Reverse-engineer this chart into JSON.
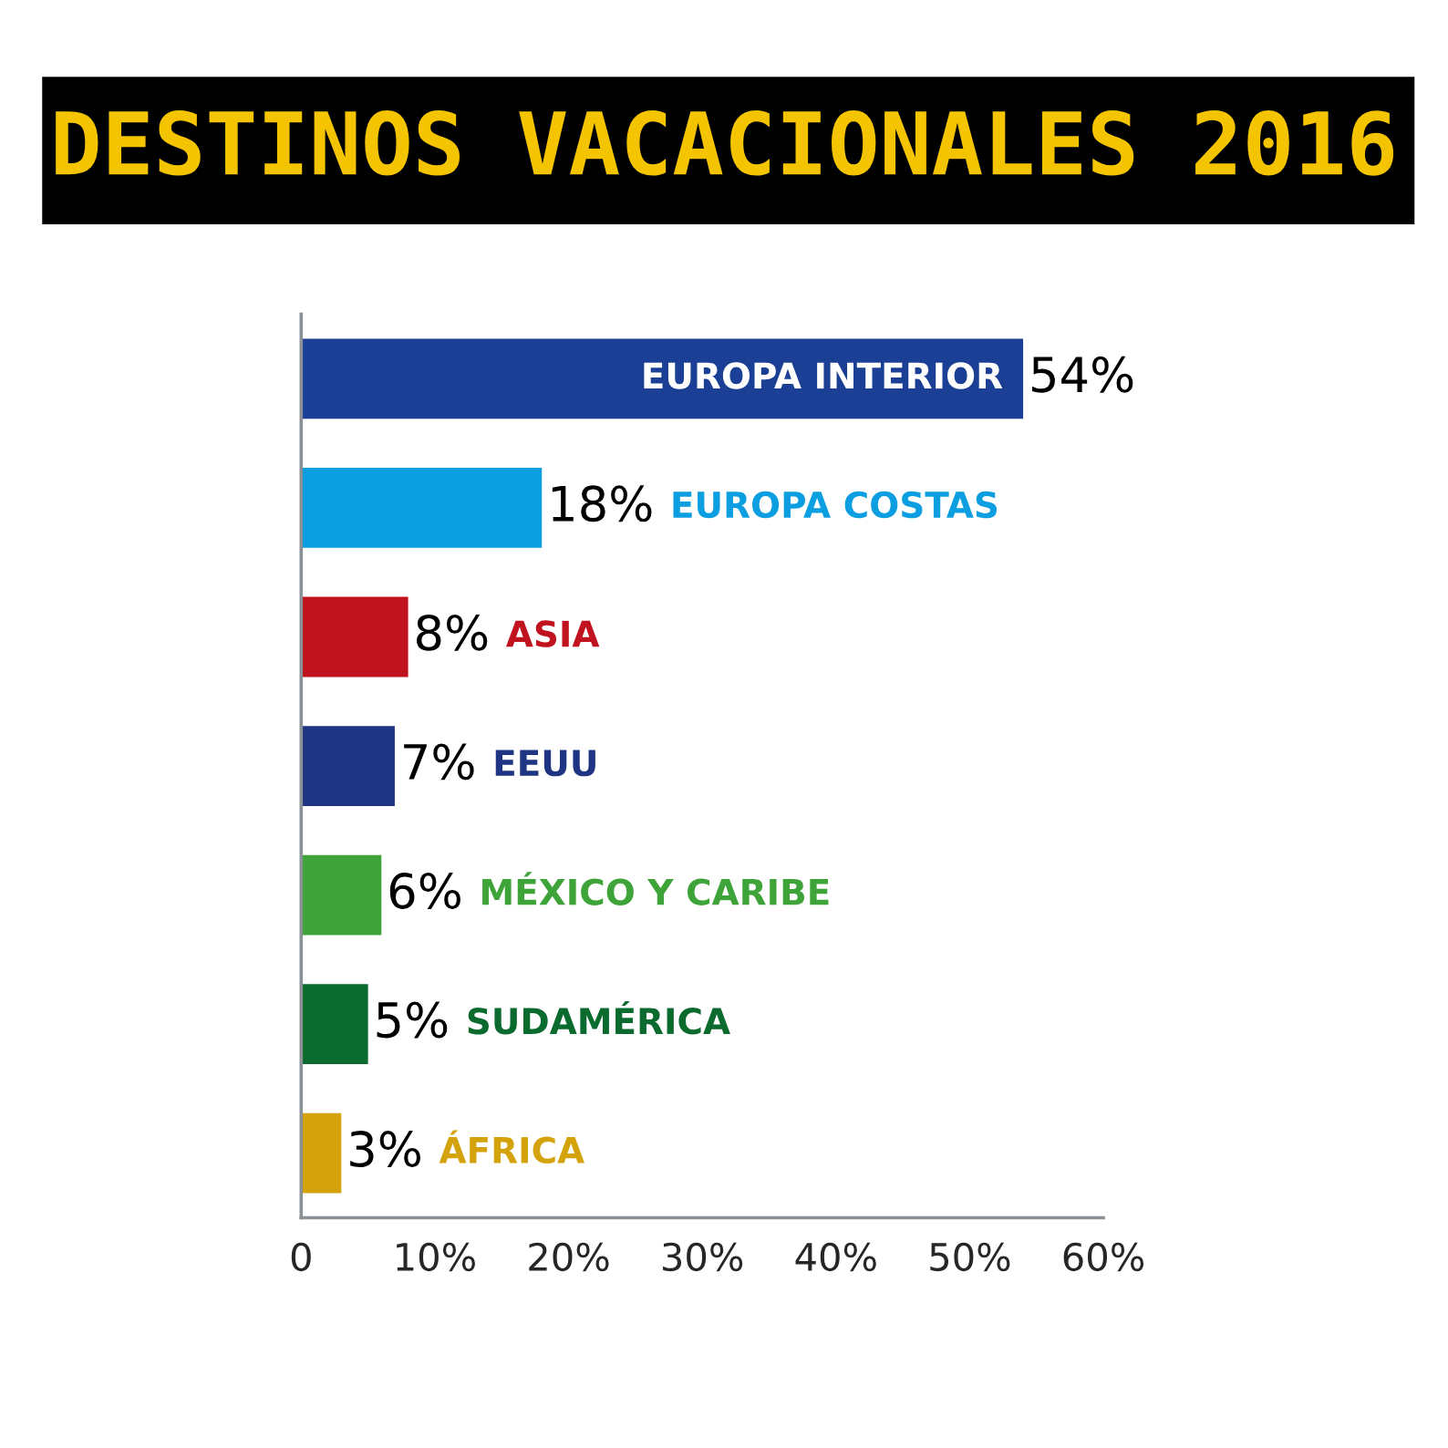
{
  "chart_data": {
    "type": "bar",
    "orientation": "horizontal",
    "title": "DESTINOS VACACIONALES 2016",
    "categories": [
      "EUROPA INTERIOR",
      "EUROPA COSTAS",
      "ASIA",
      "EEUU",
      "MÉXICO Y CARIBE",
      "SUDAMÉRICA",
      "ÁFRICA"
    ],
    "values": [
      54,
      18,
      8,
      7,
      6,
      5,
      3
    ],
    "value_labels": [
      "54%",
      "18%",
      "8%",
      "7%",
      "6%",
      "5%",
      "3%"
    ],
    "colors": [
      "#1a3f94",
      "#0b9ee0",
      "#c1121f",
      "#1f3584",
      "#3ea338",
      "#0b6b2e",
      "#d4a20a"
    ],
    "xlim": [
      0,
      60
    ],
    "xticks": [
      0,
      {
        "value": 10,
        "label": "10%"
      },
      {
        "value": 20,
        "label": "20%"
      },
      {
        "value": 30,
        "label": "30%"
      },
      {
        "value": 40,
        "label": "40%"
      },
      {
        "value": 50,
        "label": "50%"
      },
      {
        "value": 60,
        "label": "60%"
      }
    ],
    "grid": false,
    "legend": false
  }
}
